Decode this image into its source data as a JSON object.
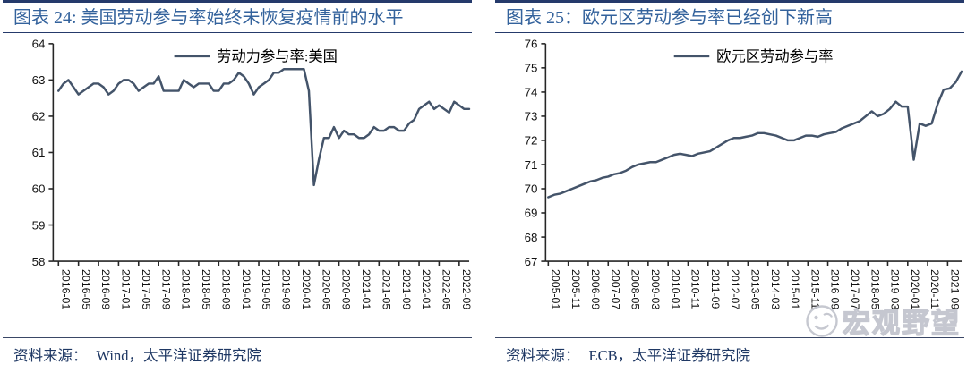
{
  "watermark": {
    "text": "宏观野望",
    "icon": "emoji-face-icon",
    "color": "#c0c3cc"
  },
  "charts": [
    {
      "id": "us-labor-participation",
      "type": "line",
      "title": "图表 24: 美国劳动参与率始终未恢复疫情前的水平",
      "legend": "劳动力参与率:美国",
      "source_label": "资料来源：",
      "source": "Wind，太平洋证券研究院",
      "line_color": "#44546A",
      "ylim": [
        58,
        64
      ],
      "yticks": [
        58,
        59,
        60,
        61,
        62,
        63,
        64
      ],
      "x_start": "2016-01",
      "point_step_months": 1,
      "tick_step_months": 4,
      "months_total": 82,
      "x_tick_labels": [
        "2016-01",
        "2016-05",
        "2016-09",
        "2017-01",
        "2017-05",
        "2017-09",
        "2018-01",
        "2018-05",
        "2018-09",
        "2019-01",
        "2019-05",
        "2019-09",
        "2020-01",
        "2020-05",
        "2020-09",
        "2021-01",
        "2021-05",
        "2021-09",
        "2022-01",
        "2022-05",
        "2022-09"
      ],
      "values": [
        62.7,
        62.9,
        63.0,
        62.8,
        62.6,
        62.7,
        62.8,
        62.9,
        62.9,
        62.8,
        62.6,
        62.7,
        62.9,
        63.0,
        63.0,
        62.9,
        62.7,
        62.8,
        62.9,
        62.9,
        63.1,
        62.7,
        62.7,
        62.7,
        62.7,
        63.0,
        62.9,
        62.8,
        62.9,
        62.9,
        62.9,
        62.7,
        62.7,
        62.9,
        62.9,
        63.0,
        63.2,
        63.1,
        62.9,
        62.6,
        62.8,
        62.9,
        63.0,
        63.2,
        63.2,
        63.3,
        63.3,
        63.3,
        63.3,
        63.3,
        62.7,
        60.1,
        60.8,
        61.4,
        61.4,
        61.7,
        61.4,
        61.6,
        61.5,
        61.5,
        61.4,
        61.4,
        61.5,
        61.7,
        61.6,
        61.6,
        61.7,
        61.7,
        61.6,
        61.6,
        61.8,
        61.9,
        62.2,
        62.3,
        62.4,
        62.2,
        62.3,
        62.2,
        62.1,
        62.4,
        62.3,
        62.2,
        62.2
      ]
    },
    {
      "id": "eurozone-labor-participation",
      "type": "line",
      "title": "图表 25：欧元区劳动参与率已经创下新高",
      "legend": "欧元区劳动参与率",
      "source_label": "资料来源：",
      "source": "ECB，太平洋证券研究院",
      "line_color": "#44546A",
      "ylim": [
        67,
        76
      ],
      "yticks": [
        67,
        68,
        69,
        70,
        71,
        72,
        73,
        74,
        75,
        76
      ],
      "x_start": "2005-01",
      "point_step_months": 3,
      "tick_step_months": 10,
      "months_total": 207,
      "x_tick_labels": [
        "2005-01",
        "2005-11",
        "2006-09",
        "2007-07",
        "2008-05",
        "2009-03",
        "2010-01",
        "2010-11",
        "2011-09",
        "2012-07",
        "2013-05",
        "2014-03",
        "2015-01",
        "2015-11",
        "2016-09",
        "2017-07",
        "2018-05",
        "2019-03",
        "2020-01",
        "2020-11",
        "2021-09"
      ],
      "values": [
        69.65,
        69.75,
        69.8,
        69.9,
        70.0,
        70.1,
        70.2,
        70.3,
        70.35,
        70.45,
        70.5,
        70.6,
        70.65,
        70.75,
        70.9,
        71.0,
        71.05,
        71.1,
        71.1,
        71.2,
        71.3,
        71.4,
        71.45,
        71.4,
        71.35,
        71.45,
        71.5,
        71.55,
        71.7,
        71.85,
        72.0,
        72.1,
        72.1,
        72.15,
        72.2,
        72.3,
        72.3,
        72.25,
        72.2,
        72.1,
        72.0,
        72.0,
        72.1,
        72.2,
        72.2,
        72.15,
        72.25,
        72.3,
        72.35,
        72.5,
        72.6,
        72.7,
        72.8,
        73.0,
        73.2,
        73.0,
        73.1,
        73.3,
        73.6,
        73.4,
        73.4,
        71.2,
        72.7,
        72.6,
        72.7,
        73.5,
        74.1,
        74.15,
        74.4,
        74.85
      ]
    }
  ]
}
